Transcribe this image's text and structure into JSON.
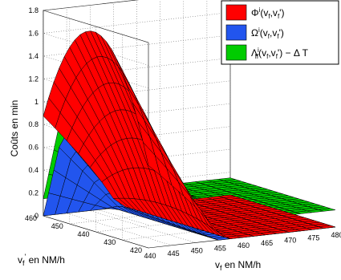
{
  "chart_data": {
    "type": "surface",
    "zlabel": "Coûts en min",
    "xlabel": "v_f en NM/h",
    "ylabel": "v_f' en NM/h",
    "z_ticks": [
      "0",
      "0.2",
      "0.4",
      "0.6",
      "0.8",
      "1",
      "1.2",
      "1.4",
      "1.6",
      "1.8"
    ],
    "x_ticks": [
      "440",
      "445",
      "450",
      "455",
      "460",
      "465",
      "470",
      "475",
      "480"
    ],
    "y_ticks": [
      "420",
      "430",
      "440",
      "450",
      "460"
    ],
    "xlim": [
      440,
      480
    ],
    "ylim": [
      420,
      460
    ],
    "zlim": [
      0,
      1.8
    ],
    "grid": true,
    "legend_position": "top-right",
    "series": [
      {
        "name": "Φ^i(v_f,v_f')",
        "color": "#ff0000",
        "description": "parabolic ridge in v_f' peaking ~1.75 min, decaying along v_f",
        "peak": 1.75,
        "values_at_vf440_edge": [
          0.8,
          1.75,
          0.8
        ]
      },
      {
        "name": "Ω^i(v_f,v_f')",
        "color": "#2255ee",
        "description": "ridge along v_f'≈453, max ~0.75 min near v_f=440",
        "peak": 0.75,
        "values_at_vf440_edge": [
          0.5,
          0.75,
          0
        ]
      },
      {
        "name": "Λ_ff^i(v_f,v_f') − Δ T",
        "color": "#00cc00",
        "description": "ridge along v_f'≈453, max ~0.95 min, flat plateau ~0.15 for large v_f",
        "peak": 0.95,
        "values_at_vf440_edge": [
          0.75,
          0.95,
          0.15
        ]
      }
    ],
    "legend": {
      "entries": [
        {
          "base": "Φ",
          "sup": "i",
          "args": "(v",
          "sub1": "f",
          "mid": ",v",
          "sub2": "f",
          "end": "')",
          "suffix": "",
          "color": "#ff0000"
        },
        {
          "base": "Ω",
          "sup": "i",
          "args": "(v",
          "sub1": "f",
          "mid": ",v",
          "sub2": "f",
          "end": "')",
          "suffix": "",
          "color": "#2255ee"
        },
        {
          "base": "Λ",
          "sup": "i",
          "sub0": "ff",
          "args": "(v",
          "sub1": "f",
          "mid": ",v",
          "sub2": "f",
          "end": "')",
          "suffix": " − Δ T",
          "color": "#00cc00"
        }
      ]
    }
  }
}
